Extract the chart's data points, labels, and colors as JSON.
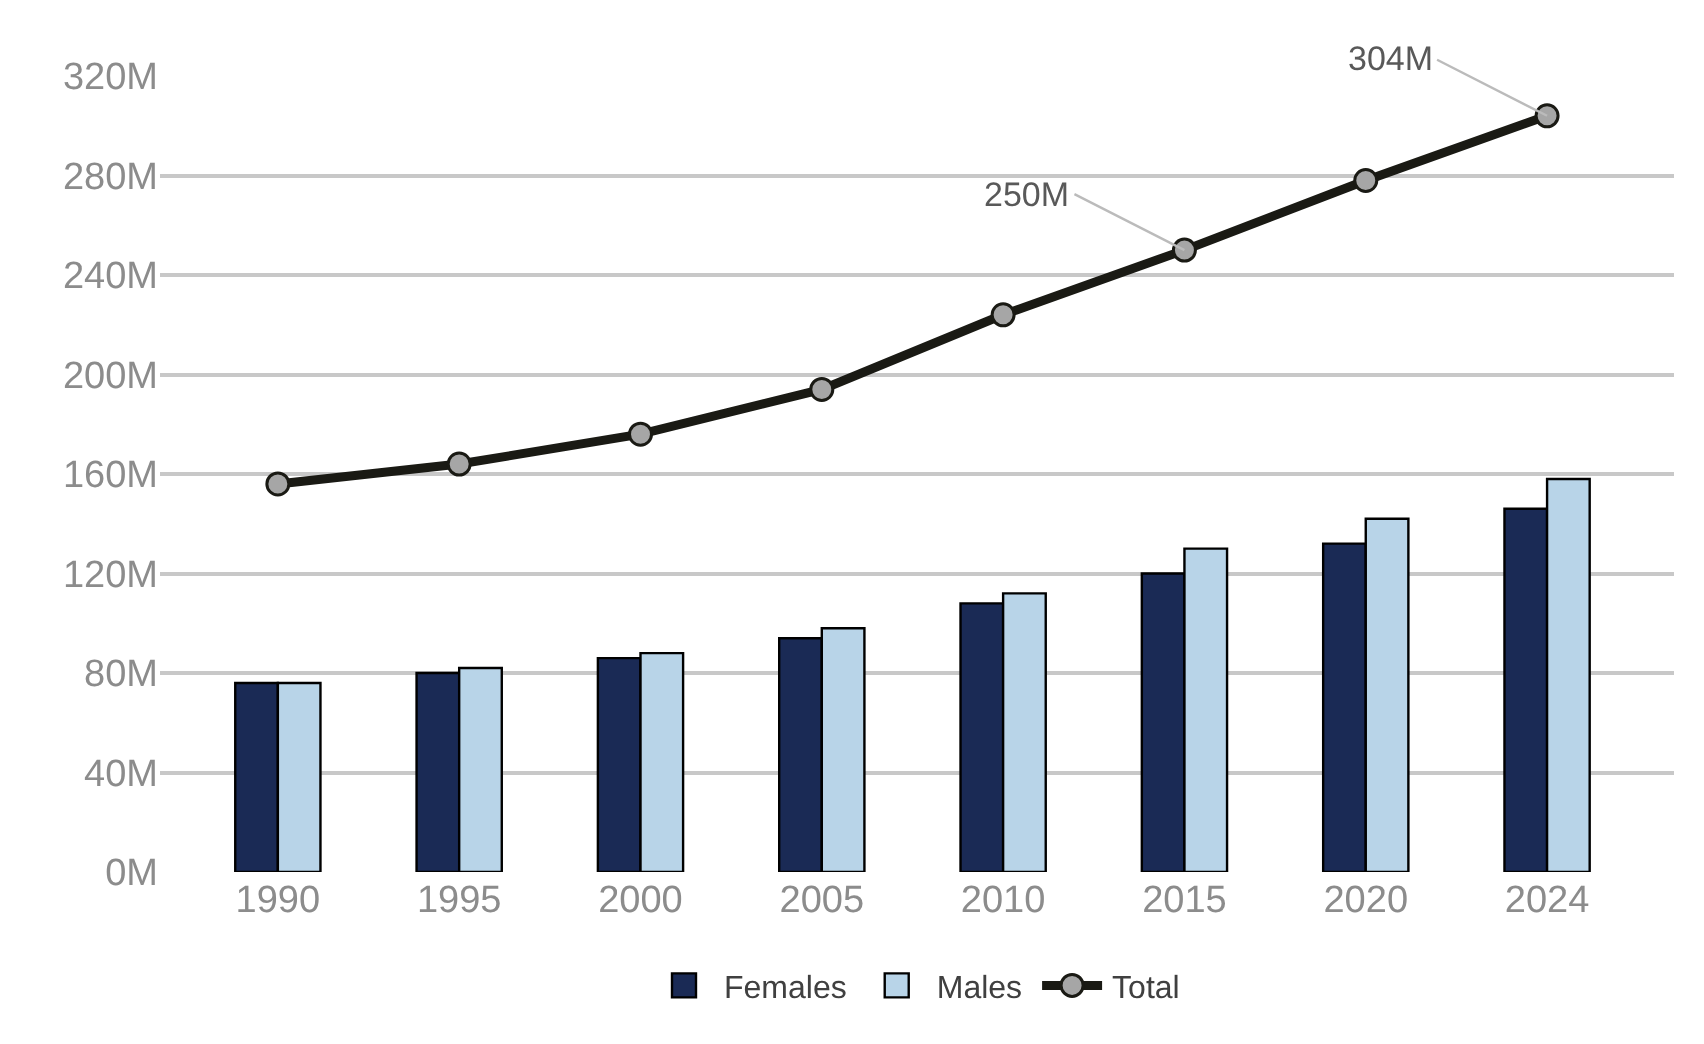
{
  "chart_data": {
    "type": "bar",
    "categories": [
      "1990",
      "1995",
      "2000",
      "2005",
      "2010",
      "2015",
      "2020",
      "2024"
    ],
    "series": [
      {
        "name": "Females",
        "color": "#1a2a55",
        "values": [
          76,
          80,
          86,
          94,
          108,
          120,
          132,
          146
        ]
      },
      {
        "name": "Males",
        "color": "#b8d4e8",
        "values": [
          76,
          82,
          88,
          98,
          112,
          130,
          142,
          158
        ]
      },
      {
        "name": "Total",
        "type": "line",
        "color": "#1a1a14",
        "marker": "circle",
        "line_style": "solid",
        "values": [
          156,
          164,
          176,
          194,
          224,
          250,
          278,
          304
        ],
        "value_labels": [
          null,
          null,
          null,
          null,
          null,
          "250M",
          null,
          "304M"
        ]
      }
    ],
    "ylim": [
      0,
      320
    ],
    "yticks": [
      {
        "value": 0,
        "label": "0M"
      },
      {
        "value": 40,
        "label": "40M"
      },
      {
        "value": 80,
        "label": "80M"
      },
      {
        "value": 120,
        "label": "120M"
      },
      {
        "value": 160,
        "label": "160M"
      },
      {
        "value": 200,
        "label": "200M"
      },
      {
        "value": 240,
        "label": "240M"
      },
      {
        "value": 280,
        "label": "280M"
      },
      {
        "value": 320,
        "label": "320M"
      }
    ],
    "grid": "y",
    "legend": "bottom"
  }
}
